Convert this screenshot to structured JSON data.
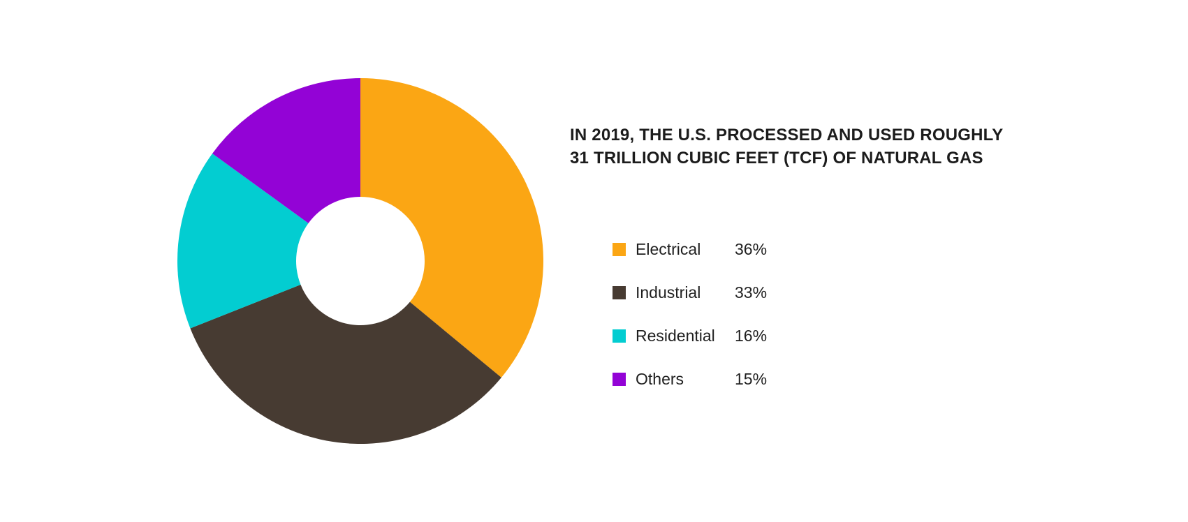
{
  "page": {
    "background": "#ffffff"
  },
  "title": {
    "line1": "IN 2019, THE U.S. PROCESSED AND USED ROUGHLY",
    "line2": "31 TRILLION CUBIC FEET (TCF) OF NATURAL GAS",
    "color": "#1c1c1c"
  },
  "chart_data": {
    "type": "pie",
    "subtype": "donut",
    "title": "IN 2019, THE U.S. PROCESSED AND USED ROUGHLY 31 TRILLION CUBIC FEET (TCF) OF NATURAL GAS",
    "categories": [
      "Electrical",
      "Industrial",
      "Residential",
      "Others"
    ],
    "values": [
      36,
      33,
      16,
      15
    ],
    "unit": "%",
    "colors": [
      "#FBA614",
      "#473B32",
      "#03CDD1",
      "#9303D6"
    ],
    "start_angle_deg": 0,
    "direction": "clockwise",
    "donut_hole_ratio": 0.35,
    "legend_position": "right",
    "items": [
      {
        "id": "electrical",
        "label": "Electrical",
        "value": 36,
        "display": "36%",
        "color": "#FBA614"
      },
      {
        "id": "industrial",
        "label": "Industrial",
        "value": 33,
        "display": "33%",
        "color": "#473B32"
      },
      {
        "id": "residential",
        "label": "Residential",
        "value": 16,
        "display": "16%",
        "color": "#03CDD1"
      },
      {
        "id": "others",
        "label": "Others",
        "value": 15,
        "display": "15%",
        "color": "#9303D6"
      }
    ]
  }
}
